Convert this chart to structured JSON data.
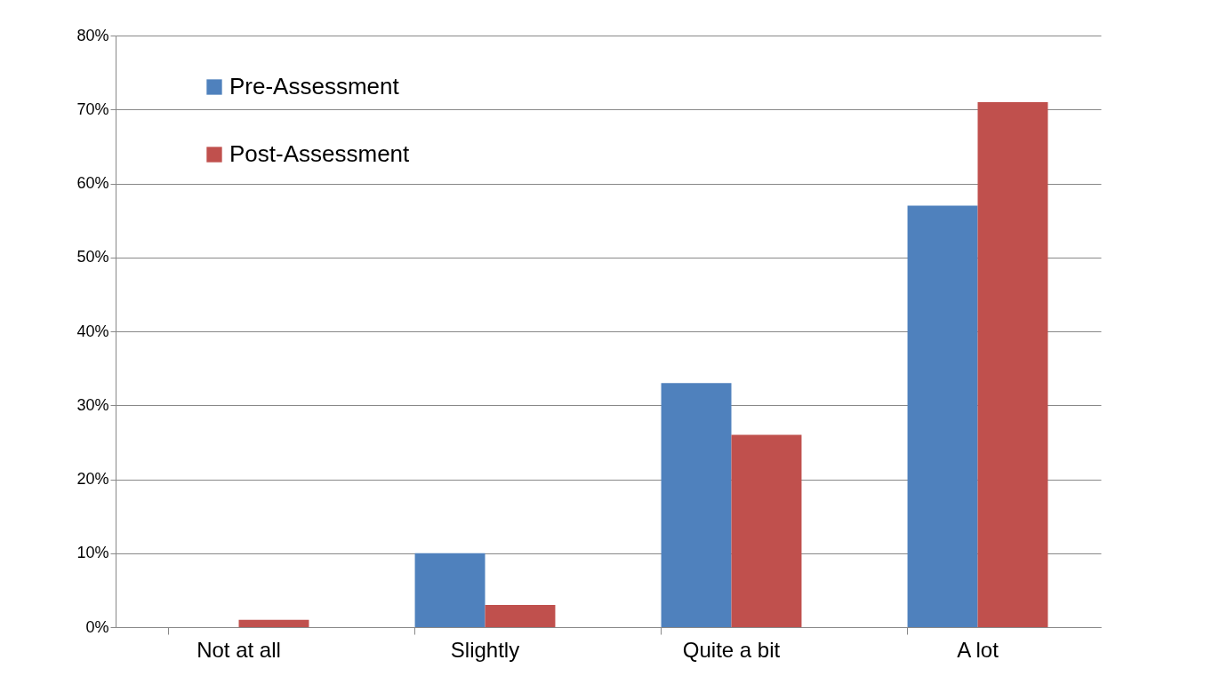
{
  "chart_data": {
    "type": "bar",
    "categories": [
      "Not at all",
      "Slightly",
      "Quite a bit",
      "A lot"
    ],
    "series": [
      {
        "name": "Pre-Assessment",
        "color": "#4f81bd",
        "values": [
          0,
          10,
          33,
          57
        ]
      },
      {
        "name": "Post-Assessment",
        "color": "#c0504d",
        "values": [
          1,
          3,
          26,
          71
        ]
      }
    ],
    "ylim": [
      0,
      80
    ],
    "yticks": [
      {
        "value": 0,
        "label": "0%"
      },
      {
        "value": 10,
        "label": "10%"
      },
      {
        "value": 20,
        "label": "20%"
      },
      {
        "value": 30,
        "label": "30%"
      },
      {
        "value": 40,
        "label": "40%"
      },
      {
        "value": 50,
        "label": "50%"
      },
      {
        "value": 60,
        "label": "60%"
      },
      {
        "value": 70,
        "label": "70%"
      },
      {
        "value": 80,
        "label": "80%"
      }
    ],
    "grid": "y",
    "legend": "top left"
  }
}
